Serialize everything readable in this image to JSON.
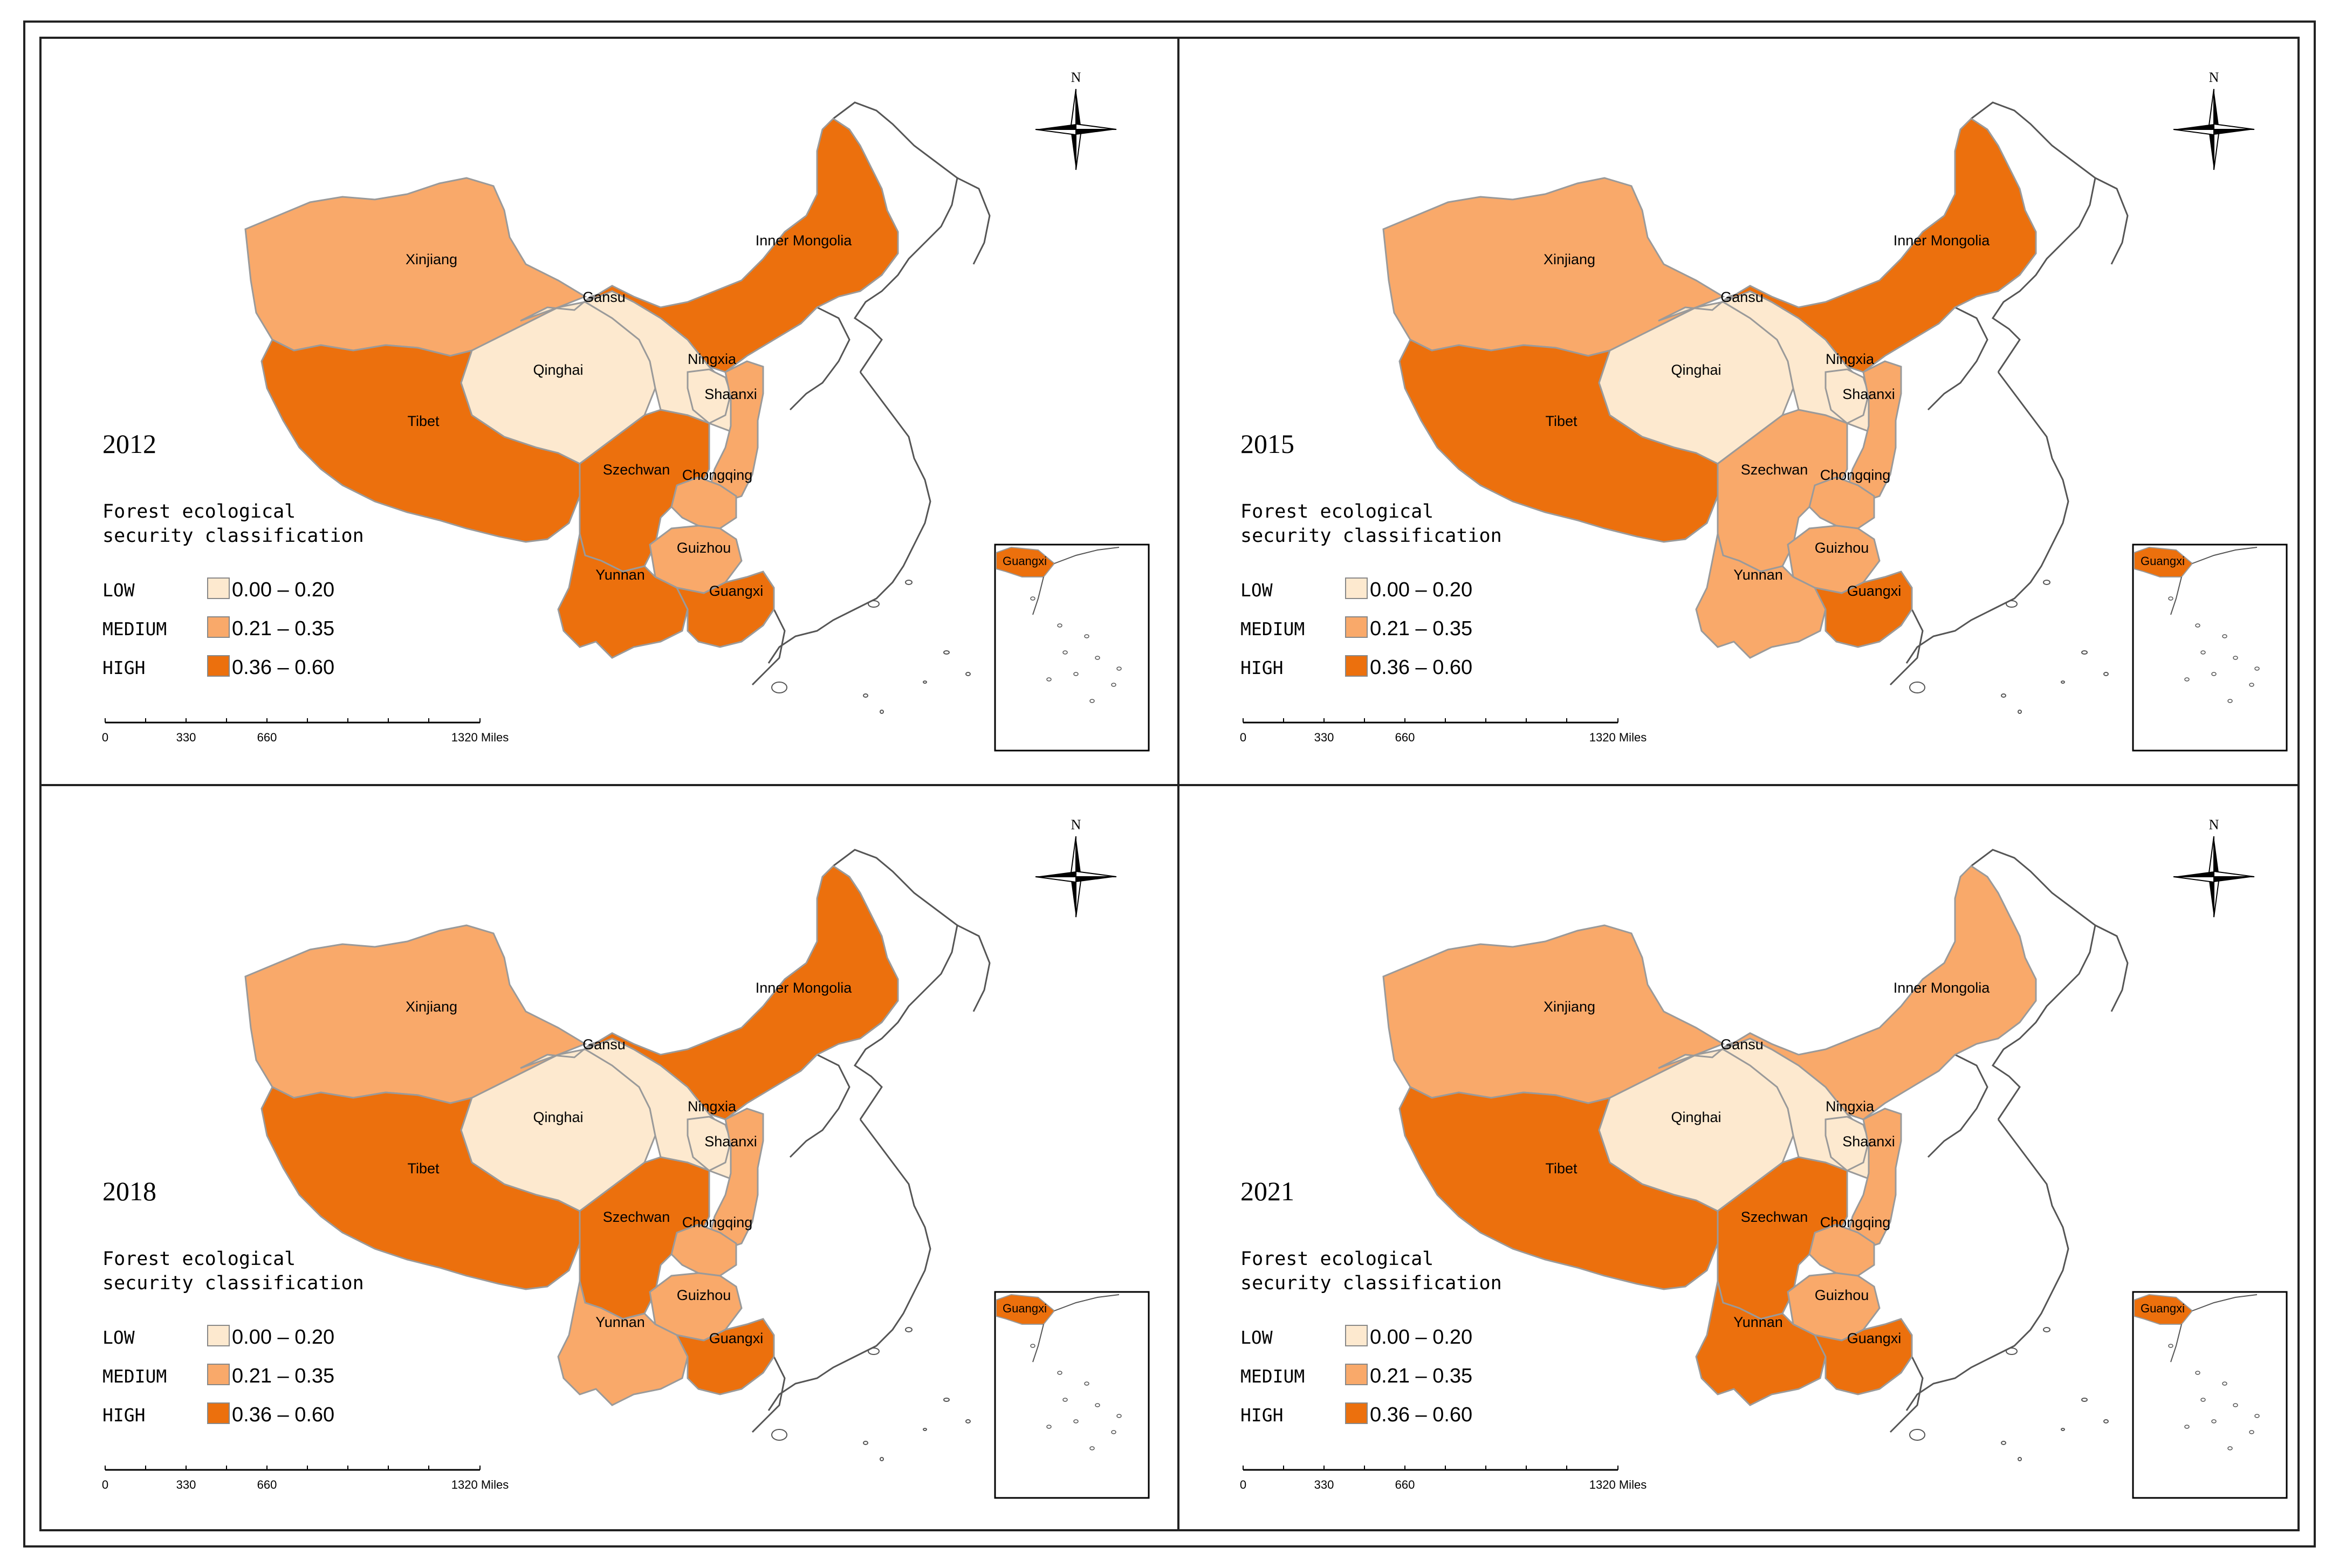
{
  "colors": {
    "low": "#fde9cf",
    "medium": "#f9a96a",
    "high": "#ec700d",
    "border": "#9a9a9a",
    "outline": "#555555"
  },
  "legend": {
    "title_line1": "Forest ecological",
    "title_line2": "security classification",
    "items": [
      {
        "label": "LOW",
        "range": "0.00 – 0.20",
        "level": "low"
      },
      {
        "label": "MEDIUM",
        "range": "0.21 – 0.35",
        "level": "medium"
      },
      {
        "label": "HIGH",
        "range": "0.36 – 0.60",
        "level": "high"
      }
    ]
  },
  "scale_bar": {
    "ticks": [
      "0",
      "330",
      "660",
      "1320 Miles"
    ]
  },
  "compass": {
    "label": "N"
  },
  "inset_label": "Guangxi",
  "panels": [
    {
      "year": "2012",
      "classes": {
        "xinjiang": "medium",
        "tibet": "high",
        "qinghai": "low",
        "gansu": "low",
        "inner_mongolia": "high",
        "ningxia": "low",
        "shaanxi": "medium",
        "szechwan": "high",
        "chongqing": "medium",
        "guizhou": "medium",
        "yunnan": "high",
        "guangxi": "high"
      }
    },
    {
      "year": "2015",
      "classes": {
        "xinjiang": "medium",
        "tibet": "high",
        "qinghai": "low",
        "gansu": "low",
        "inner_mongolia": "high",
        "ningxia": "low",
        "shaanxi": "medium",
        "szechwan": "medium",
        "chongqing": "medium",
        "guizhou": "medium",
        "yunnan": "medium",
        "guangxi": "high"
      }
    },
    {
      "year": "2018",
      "classes": {
        "xinjiang": "medium",
        "tibet": "high",
        "qinghai": "low",
        "gansu": "low",
        "inner_mongolia": "high",
        "ningxia": "low",
        "shaanxi": "medium",
        "szechwan": "high",
        "chongqing": "medium",
        "guizhou": "medium",
        "yunnan": "medium",
        "guangxi": "high"
      }
    },
    {
      "year": "2021",
      "classes": {
        "xinjiang": "medium",
        "tibet": "high",
        "qinghai": "low",
        "gansu": "low",
        "inner_mongolia": "medium",
        "ningxia": "low",
        "shaanxi": "medium",
        "szechwan": "high",
        "chongqing": "medium",
        "guizhou": "medium",
        "yunnan": "high",
        "guangxi": "high"
      }
    }
  ],
  "province_names": {
    "xinjiang": "Xinjiang",
    "tibet": "Tibet",
    "qinghai": "Qinghai",
    "gansu": "Gansu",
    "inner_mongolia": "Inner Mongolia",
    "ningxia": "Ningxia",
    "shaanxi": "Shaanxi",
    "szechwan": "Szechwan",
    "chongqing": "Chongqing",
    "guizhou": "Guizhou",
    "yunnan": "Yunnan",
    "guangxi": "Guangxi"
  }
}
